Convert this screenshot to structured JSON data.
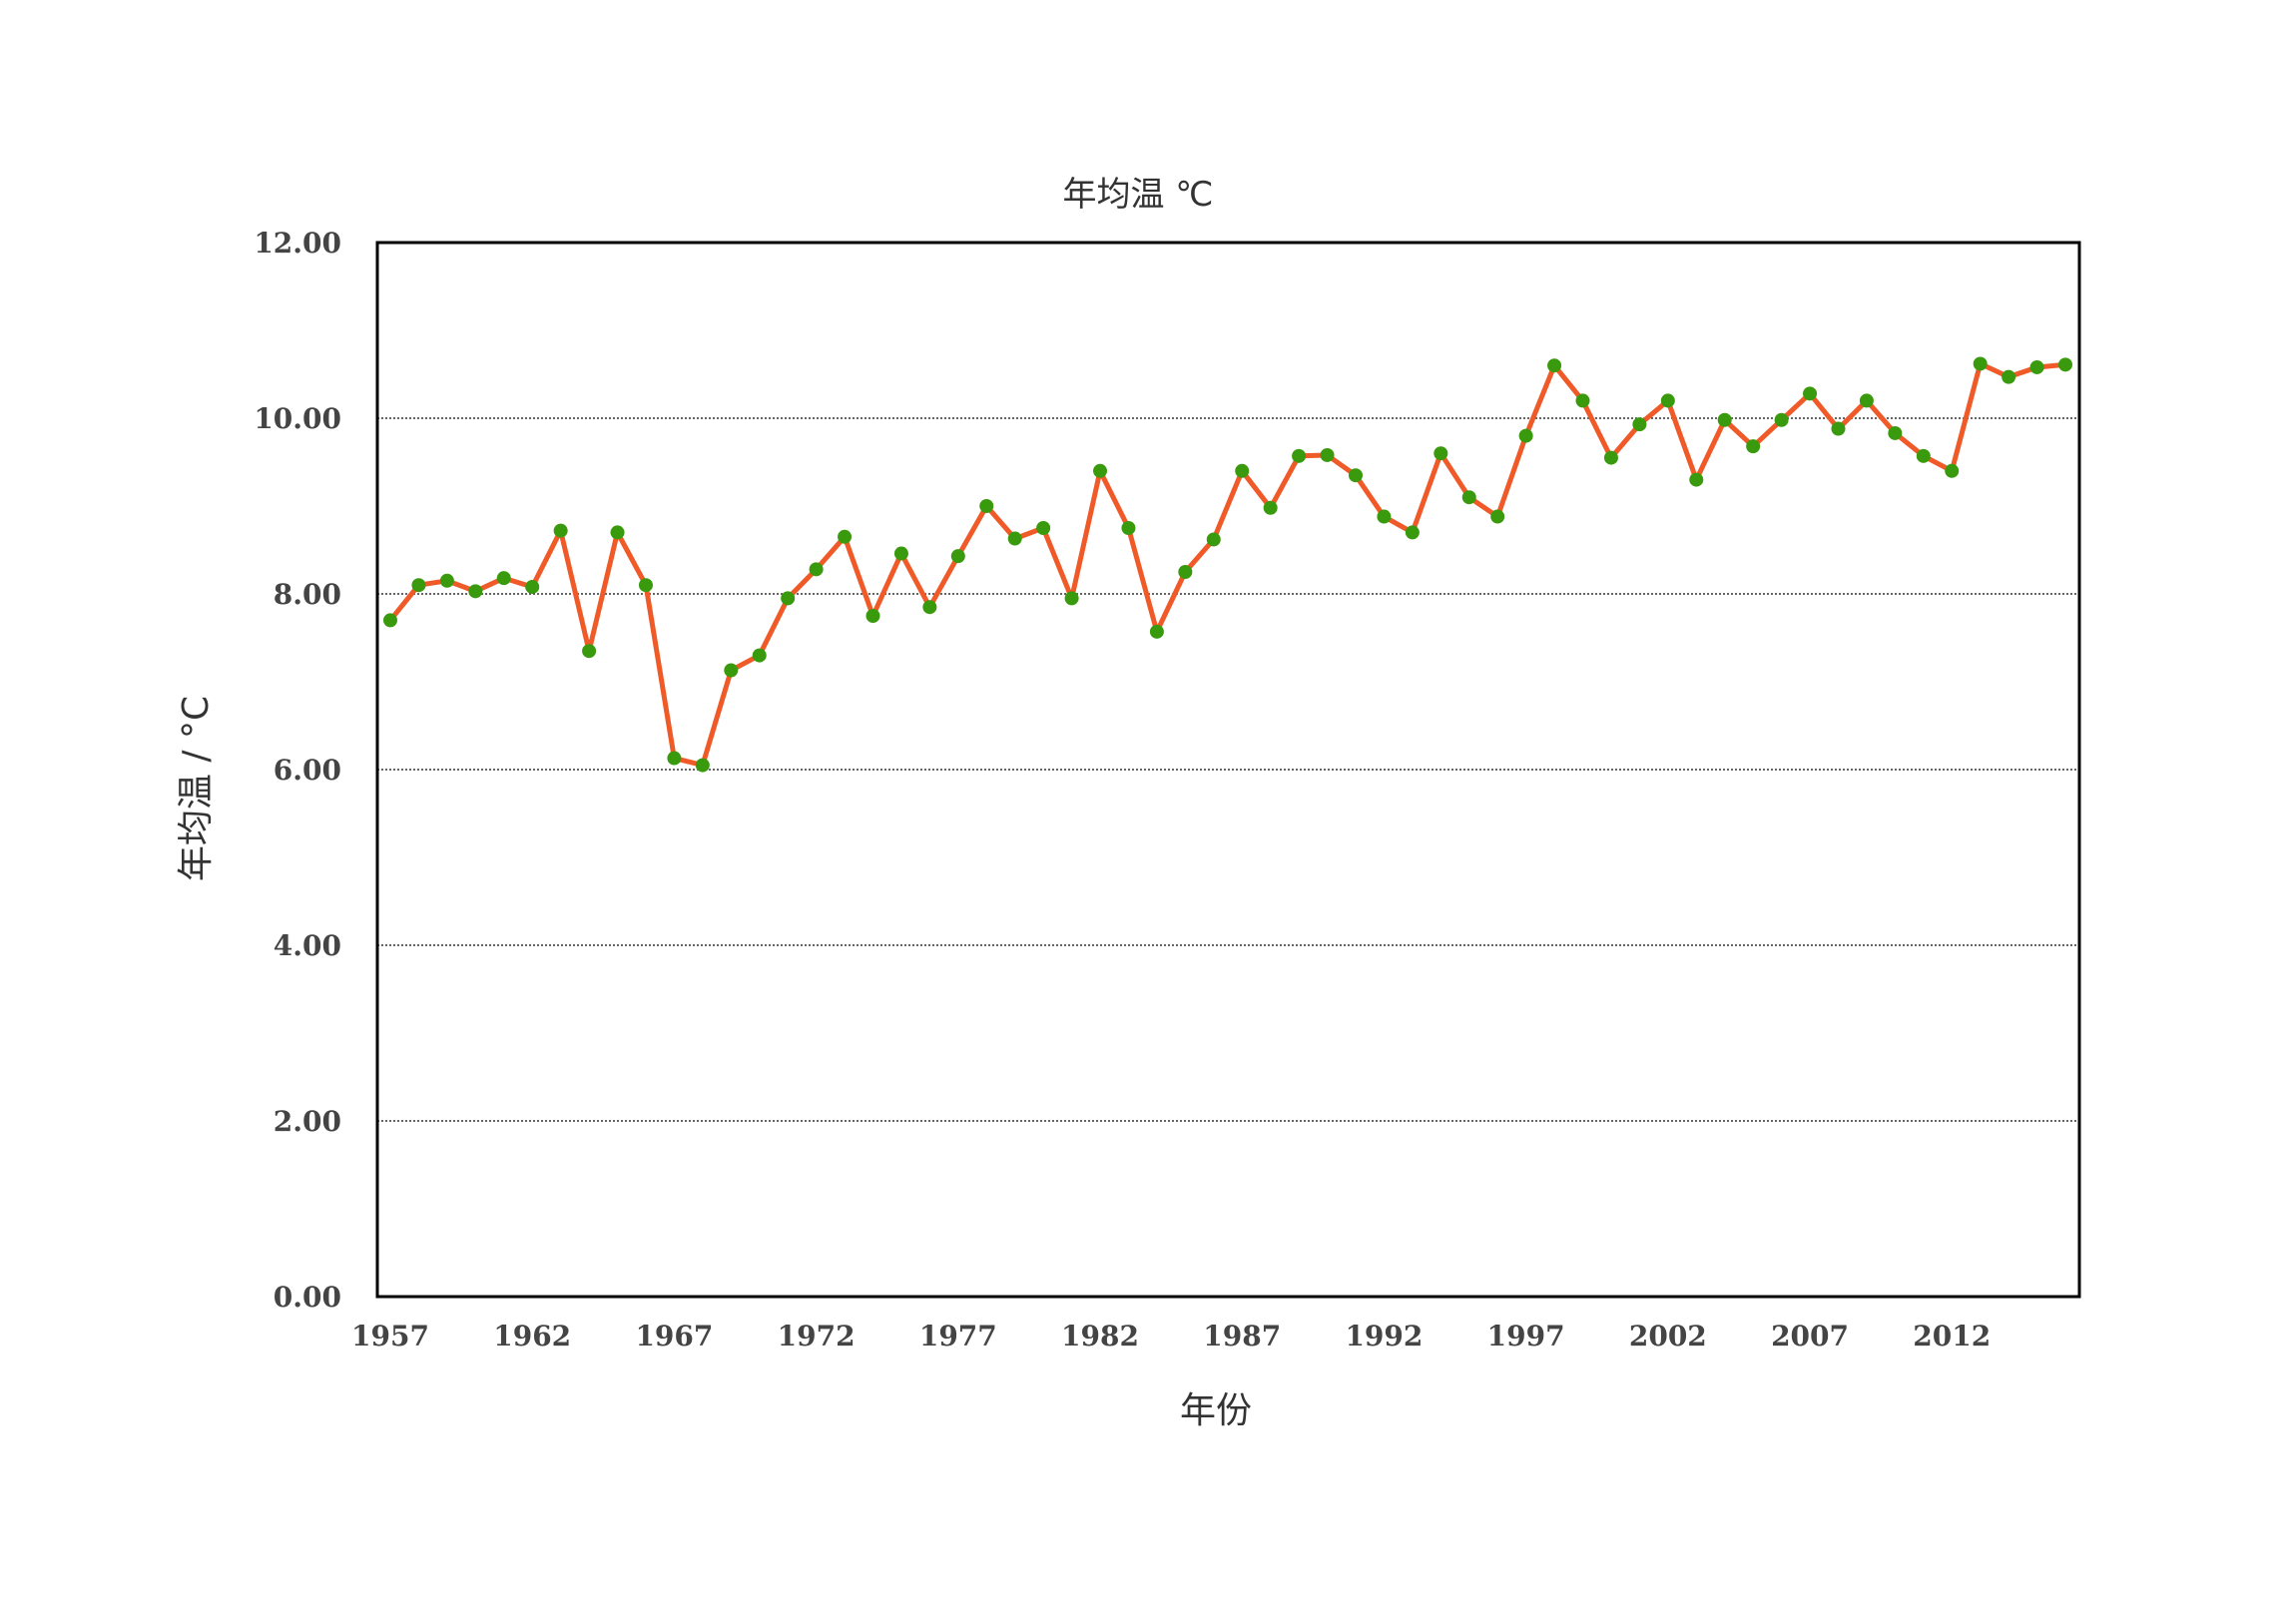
{
  "chart_data": {
    "type": "line",
    "title": "年均温 ℃",
    "xlabel": "年份",
    "ylabel": "年均温 / °C",
    "ylim": [
      0,
      12
    ],
    "yticks": [
      "0.00",
      "2.00",
      "4.00",
      "6.00",
      "8.00",
      "10.00",
      "12.00"
    ],
    "xticks": [
      "1957",
      "1962",
      "1967",
      "1972",
      "1977",
      "1982",
      "1987",
      "1992",
      "1997",
      "2002",
      "2007",
      "2012"
    ],
    "grid": "horizontal",
    "line_color": "#f05a28",
    "marker_color": "#3a9a0e",
    "x": [
      1957,
      1958,
      1959,
      1960,
      1961,
      1962,
      1963,
      1964,
      1965,
      1966,
      1967,
      1968,
      1969,
      1970,
      1971,
      1972,
      1973,
      1974,
      1975,
      1976,
      1977,
      1978,
      1979,
      1980,
      1981,
      1982,
      1983,
      1984,
      1985,
      1986,
      1987,
      1988,
      1989,
      1990,
      1991,
      1992,
      1993,
      1994,
      1995,
      1996,
      1997,
      1998,
      1999,
      2000,
      2001,
      2002,
      2003,
      2004,
      2005,
      2006,
      2007,
      2008,
      2009,
      2010,
      2011,
      2012,
      2013,
      2014,
      2015,
      2016
    ],
    "values": [
      7.7,
      8.1,
      8.15,
      8.03,
      8.18,
      8.08,
      8.72,
      7.35,
      8.7,
      8.1,
      6.13,
      6.05,
      7.13,
      7.3,
      7.95,
      8.28,
      8.65,
      7.75,
      8.46,
      7.85,
      8.43,
      9.0,
      8.63,
      8.75,
      7.95,
      9.4,
      8.75,
      7.57,
      8.25,
      8.62,
      9.4,
      8.98,
      9.57,
      9.58,
      9.35,
      8.88,
      8.7,
      9.6,
      9.1,
      8.88,
      9.8,
      10.6,
      10.2,
      9.55,
      9.93,
      10.2,
      9.3,
      9.98,
      9.68,
      9.98,
      10.28,
      9.88,
      10.2,
      9.83,
      9.57,
      9.4,
      10.62,
      10.47,
      10.58,
      10.61
    ]
  }
}
